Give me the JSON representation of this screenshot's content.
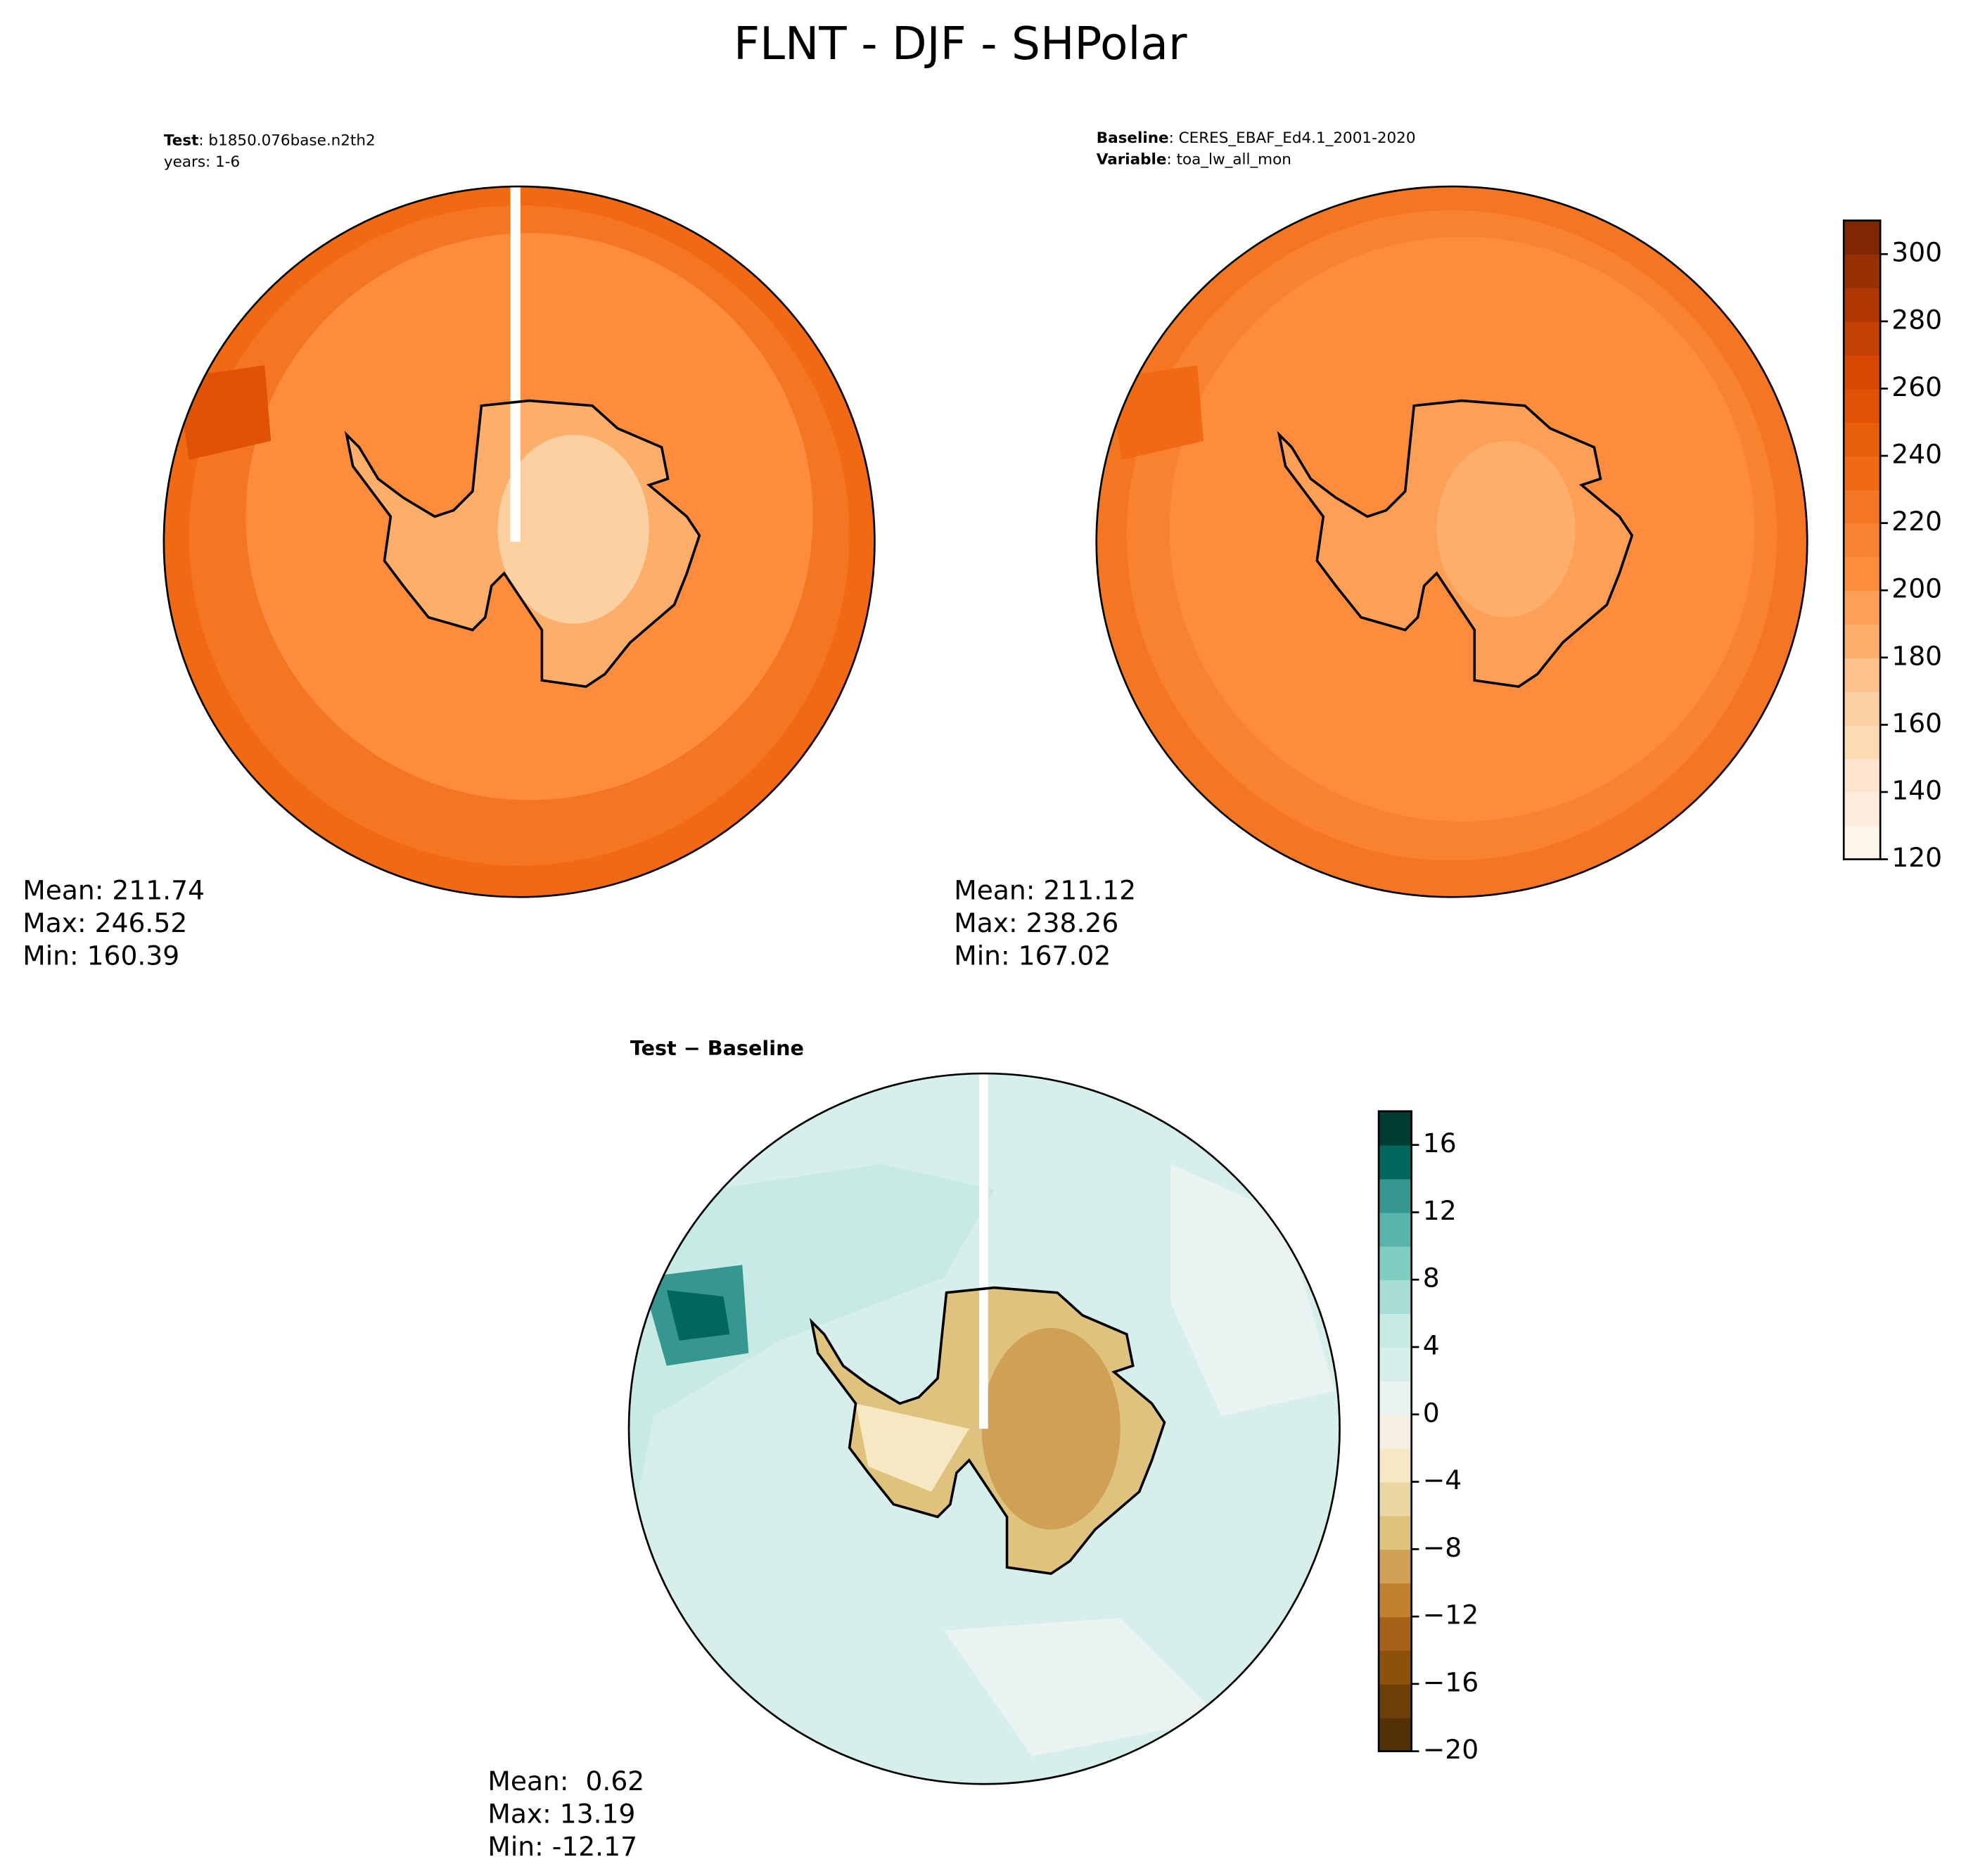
{
  "title": "FLNT - DJF - SHPolar",
  "panels": [
    {
      "header": [
        {
          "key": "Test",
          "text": ": b1850.076base.n2th2"
        },
        {
          "text": "years: 1-6"
        }
      ],
      "stats": [
        "Mean: 211.74",
        "Max: 246.52",
        "Min: 160.39"
      ]
    },
    {
      "header": [
        {
          "key": "Baseline",
          "text": ": CERES_EBAF_Ed4.1_2001-2020"
        },
        {
          "key": "Variable",
          "text": ": toa_lw_all_mon"
        }
      ],
      "stats": [
        "Mean: 211.12",
        "Max: 238.26",
        "Min: 167.02"
      ]
    },
    {
      "header": [
        {
          "key": "Test − Baseline"
        }
      ],
      "stats": [
        "Mean:  0.62",
        "Max: 13.19",
        "Min: -12.17"
      ]
    }
  ],
  "colorbars": [
    {
      "lim": [
        120,
        310
      ],
      "ticks": [
        120,
        140,
        160,
        180,
        200,
        220,
        240,
        260,
        280,
        300
      ],
      "colors": [
        "#fff5eb",
        "#feeddc",
        "#fee6ce",
        "#fdd9b4",
        "#fdd0a2",
        "#fdc38a",
        "#fdae6b",
        "#fd9f56",
        "#fd8d3c",
        "#f98230",
        "#f57622",
        "#f16913",
        "#e95e0d",
        "#e05206",
        "#d94801",
        "#c44103",
        "#b03903",
        "#983004",
        "#7f2704"
      ]
    },
    {
      "lim": [
        -20,
        18
      ],
      "ticks": [
        {
          "value": -20,
          "label": "−20"
        },
        {
          "value": -16,
          "label": "−16"
        },
        {
          "value": -12,
          "label": "−12"
        },
        {
          "value": -8,
          "label": "−8"
        },
        {
          "value": -4,
          "label": "−4"
        },
        0,
        4,
        8,
        12,
        16
      ],
      "colors": [
        "#543005",
        "#6d3f07",
        "#8c510a",
        "#a6611a",
        "#bf812d",
        "#cfa055",
        "#dfc27d",
        "#ebd6a3",
        "#f6e8c3",
        "#f5f0e2",
        "#eaf3f2",
        "#d7efea",
        "#c7eae5",
        "#a8ddd5",
        "#80cdc1",
        "#5ab4ac",
        "#35978f",
        "#01665e",
        "#003c30"
      ]
    }
  ]
}
